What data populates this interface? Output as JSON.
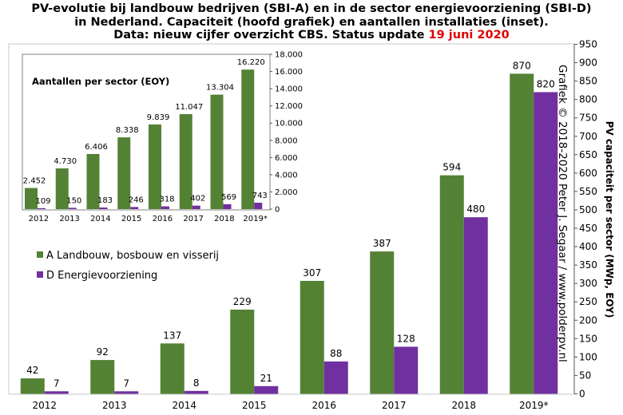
{
  "title": {
    "line1": "PV-evolutie bij landbouw bedrijven (SBI-A) en in de sector energievoorziening (SBI-D)",
    "line2": "in Nederland. Capaciteit (hoofd grafiek) en aantallen installaties (inset).",
    "line3_prefix": "Data: nieuw cijfer overzicht CBS. Status update ",
    "line3_date": "19 juni 2020"
  },
  "credit": "Grafiek © 2018-2020  Peter J. Segaar / www.polderpv.nl",
  "colors": {
    "series_a": "#548235",
    "series_d": "#7030a0",
    "date": "#e00000"
  },
  "chart_data": [
    {
      "type": "bar",
      "categories": [
        "2012",
        "2013",
        "2014",
        "2015",
        "2016",
        "2017",
        "2018",
        "2019*"
      ],
      "series": [
        {
          "name": "A Landbouw, bosbouw en visserij",
          "values": [
            42,
            92,
            137,
            229,
            307,
            387,
            594,
            870
          ]
        },
        {
          "name": "D Energievoorziening",
          "values": [
            7,
            7,
            8,
            21,
            88,
            128,
            480,
            820
          ]
        }
      ],
      "value_labels": [
        [
          "42",
          "92",
          "137",
          "229",
          "307",
          "387",
          "594",
          "870"
        ],
        [
          "7",
          "7",
          "8",
          "21",
          "88",
          "128",
          "480",
          "820"
        ]
      ],
      "ylabel": "PV capaciteit per sector (MWp, EOY)",
      "ylim": [
        0,
        950
      ],
      "yticks": [
        0,
        50,
        100,
        150,
        200,
        250,
        300,
        350,
        400,
        450,
        500,
        550,
        600,
        650,
        700,
        750,
        800,
        850,
        900,
        950
      ],
      "ytick_labels": [
        "0",
        "50",
        "100",
        "150",
        "200",
        "250",
        "300",
        "350",
        "400",
        "450",
        "500",
        "550",
        "600",
        "650",
        "700",
        "750",
        "800",
        "850",
        "900",
        "950"
      ],
      "y_axis_side": "right",
      "grid": false,
      "legend": "left"
    },
    {
      "type": "bar",
      "title": "Aantallen per sector (EOY)",
      "categories": [
        "2012",
        "2013",
        "2014",
        "2015",
        "2016",
        "2017",
        "2018",
        "2019*"
      ],
      "series": [
        {
          "name": "A Landbouw, bosbouw en visserij",
          "values": [
            2452,
            4730,
            6406,
            8338,
            9839,
            11047,
            13304,
            16220
          ]
        },
        {
          "name": "D Energievoorziening",
          "values": [
            109,
            150,
            183,
            246,
            318,
            402,
            569,
            743
          ]
        }
      ],
      "value_labels": [
        [
          "2.452",
          "4.730",
          "6.406",
          "8.338",
          "9.839",
          "11.047",
          "13.304",
          "16.220"
        ],
        [
          "109",
          "150",
          "183",
          "246",
          "318",
          "402",
          "569",
          "743"
        ]
      ],
      "ylim": [
        0,
        18000
      ],
      "yticks": [
        0,
        2000,
        4000,
        6000,
        8000,
        10000,
        12000,
        14000,
        16000,
        18000
      ],
      "ytick_labels": [
        "0",
        "2.000",
        "4.000",
        "6.000",
        "8.000",
        "10.000",
        "12.000",
        "14.000",
        "16.000",
        "18.000"
      ],
      "y_axis_side": "right",
      "grid": false
    }
  ]
}
